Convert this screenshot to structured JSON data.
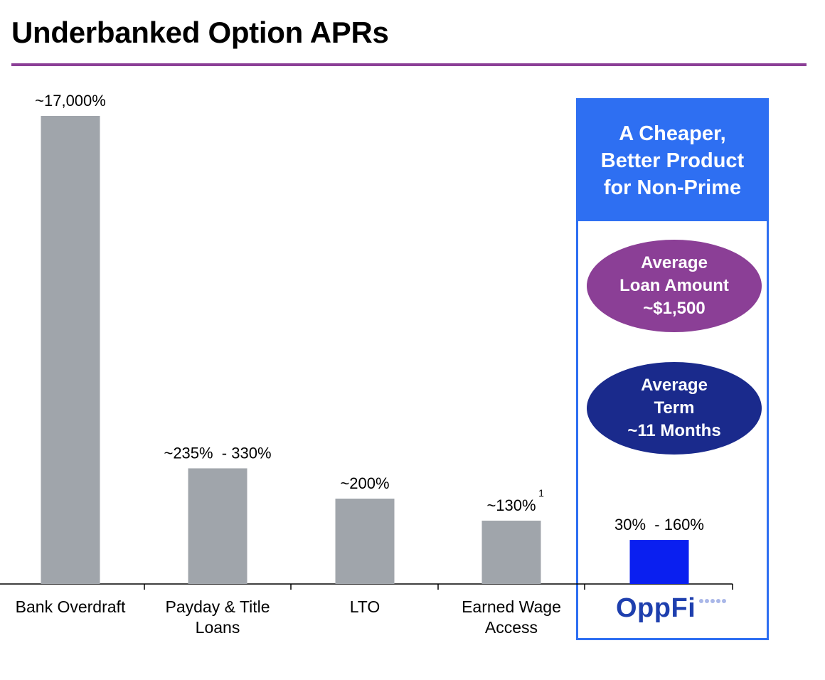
{
  "title": "Underbanked Option APRs",
  "colors": {
    "accent_rule": "#8b3f96",
    "bar_gray": "#a0a5ab",
    "bar_oppfi": "#0a1ff0",
    "panel_blue": "#2e6ff2",
    "oval_purple": "#8b3f96",
    "oval_navy": "#1a2a8c"
  },
  "panel": {
    "header": "A Cheaper,\nBetter Product\nfor Non-Prime",
    "amount_oval": "Average\nLoan Amount\n~$1,500",
    "term_oval": "Average\nTerm\n~11 Months",
    "logo_text": "OppFi",
    "logo_icon": "dots-trail-icon"
  },
  "chart_data": {
    "type": "bar",
    "title": "",
    "xlabel": "",
    "ylabel": "",
    "axis": "no y-axis; baseline only",
    "categories": [
      "Bank Overdraft",
      "Payday & Title Loans",
      "LTO",
      "Earned Wage Access",
      "OppFi"
    ],
    "category_labels": [
      [
        "Bank Overdraft"
      ],
      [
        "Payday & Title",
        "Loans"
      ],
      [
        "LTO"
      ],
      [
        "Earned Wage",
        "Access"
      ],
      []
    ],
    "values": [
      17000,
      4200,
      3100,
      2300,
      1600
    ],
    "value_labels": [
      "~17,000%",
      "~235%  - 330%",
      "~200%",
      "~130%",
      "30%  - 160%"
    ],
    "footnotes": [
      "",
      "",
      "",
      "1",
      ""
    ],
    "value_scale_note": "bar heights are illustrative, not to scale",
    "ylim": [
      0,
      17000
    ]
  }
}
